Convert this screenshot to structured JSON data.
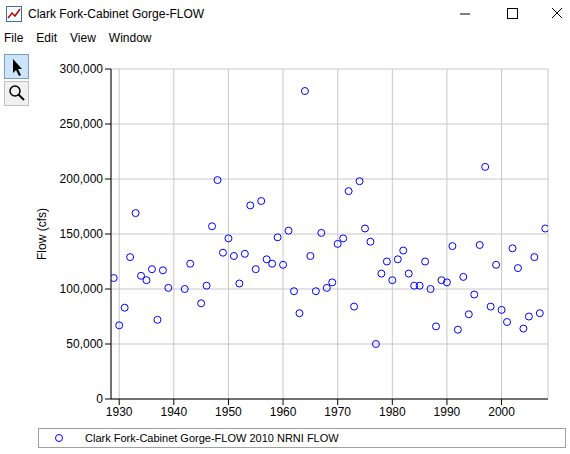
{
  "chart_data": {
    "type": "scatter",
    "title": "Clark Fork-Cabinet Gorge-FLOW",
    "y_label": "Flow (cfs)",
    "x": [
      1929,
      1930,
      1931,
      1932,
      1933,
      1934,
      1935,
      1936,
      1937,
      1938,
      1939,
      1942,
      1943,
      1945,
      1946,
      1947,
      1948,
      1949,
      1950,
      1951,
      1952,
      1953,
      1954,
      1955,
      1956,
      1957,
      1958,
      1959,
      1960,
      1961,
      1962,
      1963,
      1964,
      1965,
      1966,
      1967,
      1968,
      1969,
      1970,
      1971,
      1972,
      1973,
      1974,
      1975,
      1976,
      1977,
      1978,
      1979,
      1980,
      1981,
      1982,
      1983,
      1984,
      1985,
      1986,
      1987,
      1988,
      1989,
      1990,
      1991,
      1992,
      1993,
      1994,
      1995,
      1996,
      1997,
      1998,
      1999,
      2000,
      2001,
      2002,
      2003,
      2004,
      2005,
      2006,
      2007,
      2008
    ],
    "series": [
      {
        "name": "Clark Fork-Cabinet Gorge-FLOW 2010 NRNI FLOW",
        "color": "#0000ff",
        "marker": "open_circle",
        "values": [
          110000,
          67000,
          83000,
          129000,
          169000,
          112000,
          108000,
          118000,
          72000,
          117000,
          101000,
          100000,
          123000,
          87000,
          103000,
          157000,
          199000,
          133000,
          146000,
          130000,
          105000,
          132000,
          176000,
          118000,
          180000,
          127000,
          123000,
          147000,
          122000,
          153000,
          98000,
          78000,
          280000,
          130000,
          98000,
          151000,
          101000,
          106000,
          141000,
          146000,
          189000,
          84000,
          198000,
          155000,
          143000,
          50000,
          114000,
          125000,
          108000,
          127000,
          135000,
          114000,
          103000,
          103000,
          125000,
          100000,
          66000,
          108000,
          106000,
          139000,
          63000,
          111000,
          77000,
          95000,
          140000,
          211000,
          84000,
          122000,
          81000,
          70000,
          137000,
          119000,
          64000,
          75000,
          129000,
          78000,
          155000
        ]
      }
    ],
    "xlim": [
      1928.5,
      2008.5
    ],
    "xticks": [
      1930,
      1940,
      1950,
      1960,
      1970,
      1980,
      1990,
      2000
    ],
    "ylim": [
      0,
      300000
    ],
    "yticks": [
      0,
      {
        "value": 50000,
        "label": "50,000"
      },
      {
        "value": 100000,
        "label": "100,000"
      },
      {
        "value": 150000,
        "label": "150,000"
      },
      {
        "value": 200000,
        "label": "200,000"
      },
      {
        "value": 250000,
        "label": "250,000"
      },
      {
        "value": 300000,
        "label": "300,000"
      }
    ],
    "grid": true,
    "legend": "bottom"
  },
  "window": {
    "menu": [
      "File",
      "Edit",
      "View",
      "Window"
    ]
  }
}
